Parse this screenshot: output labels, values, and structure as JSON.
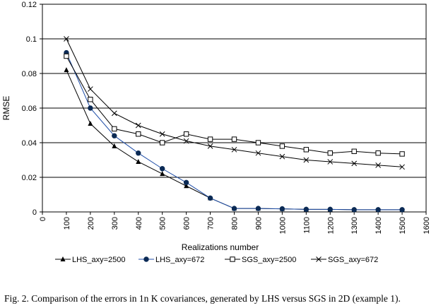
{
  "chart_data": {
    "type": "line",
    "title": "",
    "xlabel": "Realizations number",
    "ylabel": "RMSE",
    "xlim": [
      0,
      1600
    ],
    "ylim": [
      0,
      0.12
    ],
    "xticks": [
      0,
      100,
      200,
      300,
      400,
      500,
      600,
      700,
      800,
      900,
      1000,
      1100,
      1200,
      1300,
      1400,
      1500,
      1600
    ],
    "xtick_labels": [
      "0",
      "100",
      "200",
      "300",
      "400",
      "500",
      "600",
      "700",
      "800",
      "900",
      "1000",
      "1100",
      "1200",
      "1300",
      "1400",
      "1500",
      "1600"
    ],
    "yticks": [
      0,
      0.02,
      0.04,
      0.06,
      0.08,
      0.1,
      0.12
    ],
    "ytick_labels": [
      "0",
      "0.02",
      "0.04",
      "0.06",
      "0.08",
      "0.1",
      "0.12"
    ],
    "grid": "horizontal",
    "legend_position": "bottom",
    "x": [
      100,
      200,
      300,
      400,
      500,
      600,
      700,
      800,
      900,
      1000,
      1100,
      1200,
      1300,
      1400,
      1500
    ],
    "series": [
      {
        "name": "LHS_axy=2500",
        "marker": "triangle",
        "values": [
          0.082,
          0.051,
          0.038,
          0.029,
          0.022,
          0.015,
          0.008,
          0.002,
          0.002,
          0.0018,
          0.0015,
          0.0015,
          0.0013,
          0.0013,
          0.0013
        ]
      },
      {
        "name": "LHS_axy=672",
        "marker": "circle",
        "values": [
          0.092,
          0.06,
          0.044,
          0.034,
          0.025,
          0.017,
          0.008,
          0.002,
          0.002,
          0.0018,
          0.0015,
          0.0015,
          0.0013,
          0.0013,
          0.0013
        ]
      },
      {
        "name": "SGS_axy=2500",
        "marker": "square",
        "values": [
          0.09,
          0.065,
          0.048,
          0.045,
          0.04,
          0.045,
          0.042,
          0.042,
          0.04,
          0.038,
          0.036,
          0.034,
          0.035,
          0.034,
          0.0335
        ]
      },
      {
        "name": "SGS_axy=672",
        "marker": "x",
        "values": [
          0.1,
          0.071,
          0.057,
          0.05,
          0.045,
          0.041,
          0.038,
          0.036,
          0.034,
          0.032,
          0.03,
          0.029,
          0.028,
          0.027,
          0.026
        ]
      }
    ]
  },
  "caption": "Fig. 2. Comparison of the errors in 1n K covariances, generated by LHS versus SGS in 2D (example 1)."
}
